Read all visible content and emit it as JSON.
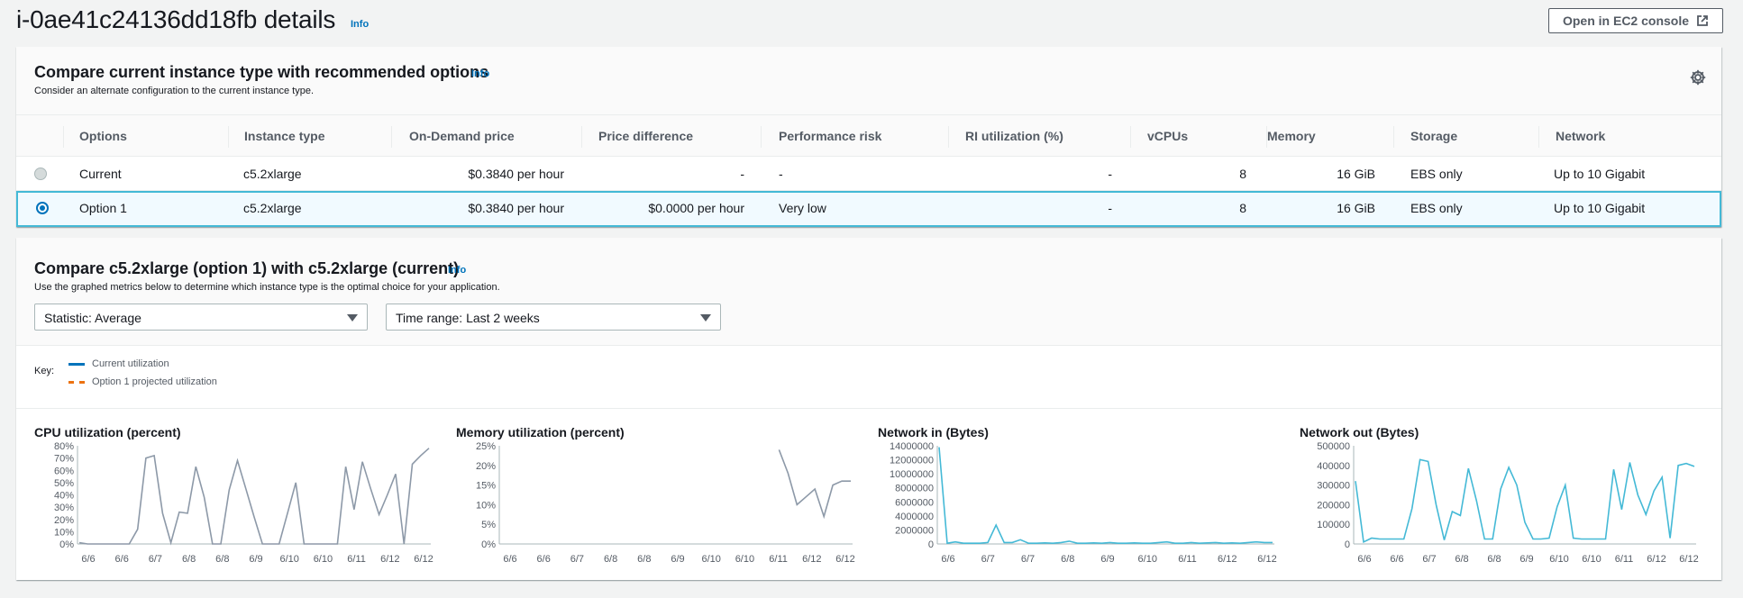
{
  "page": {
    "title": "i-0ae41c24136dd18fb details",
    "info_label": "Info",
    "ec2_button_label": "Open in EC2 console"
  },
  "compare": {
    "title": "Compare current instance type with recommended options",
    "info_label": "Info",
    "description": "Consider an alternate configuration to the current instance type.",
    "columns": [
      "Options",
      "Instance type",
      "On-Demand price",
      "Price difference",
      "Performance risk",
      "RI utilization (%)",
      "vCPUs",
      "Memory",
      "Storage",
      "Network"
    ],
    "rows": [
      {
        "option": "Current",
        "instance_type": "c5.2xlarge",
        "price": "$0.3840 per hour",
        "price_diff": "-",
        "risk": "-",
        "ri": "-",
        "vcpus": "8",
        "memory": "16 GiB",
        "storage": "EBS only",
        "network": "Up to 10 Gigabit",
        "selected": false
      },
      {
        "option": "Option 1",
        "instance_type": "c5.2xlarge",
        "price": "$0.3840 per hour",
        "price_diff": "$0.0000 per hour",
        "risk": "Very low",
        "ri": "-",
        "vcpus": "8",
        "memory": "16 GiB",
        "storage": "EBS only",
        "network": "Up to 10 Gigabit",
        "selected": true
      }
    ]
  },
  "metrics": {
    "title": "Compare c5.2xlarge (option 1) with c5.2xlarge (current)",
    "info_label": "Info",
    "description": "Use the graphed metrics below to determine which instance type is the optimal choice for your application.",
    "statistic_select": "Statistic: Average",
    "time_select": "Time range: Last 2 weeks",
    "key_label": "Key:",
    "key_current": "Current utilization",
    "key_projected": "Option 1 projected utilization"
  },
  "chart_data": [
    {
      "type": "line",
      "title": "CPU utilization (percent)",
      "y_ticks": [
        "80%",
        "70%",
        "60%",
        "50%",
        "40%",
        "30%",
        "20%",
        "10%",
        "0%"
      ],
      "x_ticks": [
        "6/6",
        "6/6",
        "6/7",
        "6/8",
        "6/8",
        "6/9",
        "6/10",
        "6/10",
        "6/11",
        "6/12",
        "6/12"
      ],
      "ylim": [
        0,
        80
      ],
      "series": [
        {
          "values": [
            1,
            0,
            0,
            0,
            0,
            0,
            0,
            12,
            70,
            72,
            25,
            1,
            26,
            25,
            63,
            38,
            0,
            0,
            44,
            68,
            45,
            22,
            0,
            0,
            0,
            25,
            50,
            0,
            0,
            0,
            0,
            0,
            63,
            28,
            67,
            45,
            24,
            40,
            57,
            0,
            65,
            72,
            78
          ],
          "color": "#8d99a8"
        }
      ]
    },
    {
      "type": "line",
      "title": "Memory utilization (percent)",
      "y_ticks": [
        "25%",
        "20%",
        "15%",
        "10%",
        "5%",
        "0%"
      ],
      "x_ticks": [
        "6/6",
        "6/6",
        "6/7",
        "6/8",
        "6/8",
        "6/9",
        "6/10",
        "6/10",
        "6/11",
        "6/12",
        "6/12"
      ],
      "ylim": [
        0,
        25
      ],
      "series": [
        {
          "values": [
            null,
            null,
            null,
            null,
            null,
            null,
            null,
            null,
            null,
            null,
            null,
            null,
            null,
            null,
            null,
            null,
            null,
            null,
            null,
            null,
            null,
            null,
            null,
            null,
            null,
            null,
            null,
            null,
            null,
            null,
            null,
            24,
            18,
            10,
            12,
            14,
            7,
            15,
            16,
            16
          ],
          "color": "#8d99a8"
        }
      ]
    },
    {
      "type": "line",
      "title": "Network in (Bytes)",
      "y_ticks": [
        "14000000",
        "12000000",
        "10000000",
        "8000000",
        "6000000",
        "4000000",
        "2000000",
        "0"
      ],
      "x_ticks": [
        "6/6",
        "6/7",
        "6/7",
        "6/8",
        "6/9",
        "6/10",
        "6/11",
        "6/12",
        "6/12"
      ],
      "ylim": [
        0,
        14000000
      ],
      "series": [
        {
          "values": [
            13800000,
            100000,
            300000,
            100000,
            100000,
            100000,
            200000,
            2700000,
            200000,
            200000,
            600000,
            100000,
            100000,
            150000,
            100000,
            200000,
            400000,
            100000,
            100000,
            150000,
            100000,
            200000,
            100000,
            100000,
            150000,
            100000,
            100000,
            200000,
            300000,
            100000,
            100000,
            200000,
            100000,
            150000,
            200000,
            100000,
            150000,
            100000,
            200000,
            300000,
            200000,
            200000
          ],
          "color": "#44b9d6"
        }
      ]
    },
    {
      "type": "line",
      "title": "Network out (Bytes)",
      "y_ticks": [
        "500000",
        "400000",
        "300000",
        "200000",
        "100000",
        "0"
      ],
      "x_ticks": [
        "6/6",
        "6/6",
        "6/7",
        "6/8",
        "6/8",
        "6/9",
        "6/10",
        "6/10",
        "6/11",
        "6/12",
        "6/12"
      ],
      "ylim": [
        0,
        500000
      ],
      "series": [
        {
          "values": [
            320000,
            10000,
            30000,
            25000,
            25000,
            25000,
            25000,
            180000,
            430000,
            420000,
            200000,
            20000,
            165000,
            145000,
            385000,
            220000,
            25000,
            25000,
            280000,
            390000,
            300000,
            110000,
            25000,
            25000,
            30000,
            190000,
            300000,
            30000,
            25000,
            25000,
            25000,
            25000,
            380000,
            175000,
            415000,
            250000,
            150000,
            270000,
            340000,
            30000,
            400000,
            410000,
            395000
          ],
          "color": "#44b9d6"
        }
      ]
    }
  ]
}
